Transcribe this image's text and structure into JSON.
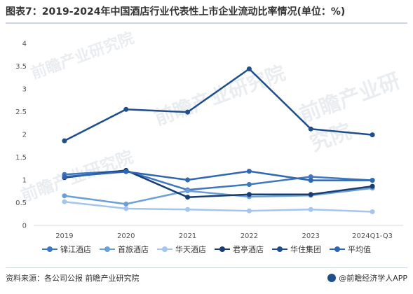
{
  "header": {
    "title": "图表7：2019-2024年中国酒店行业代表性上市企业流动比率情况(单位：%)"
  },
  "chart_data": {
    "type": "line",
    "x": [
      "2019",
      "2020",
      "2021",
      "2022",
      "2023",
      "2024Q1-Q3"
    ],
    "ylim": [
      0,
      4
    ],
    "yticks": [
      "0",
      "0.5",
      "1",
      "1.5",
      "2",
      "2.5",
      "3",
      "3.5",
      "4"
    ],
    "series": [
      {
        "name": "锦江酒店",
        "color": "#3e78c0",
        "values": [
          1.12,
          1.2,
          0.78,
          0.9,
          1.07,
          0.99
        ]
      },
      {
        "name": "首旅酒店",
        "color": "#6a9fd8",
        "values": [
          0.65,
          0.47,
          0.76,
          0.63,
          0.66,
          0.82
        ]
      },
      {
        "name": "华天酒店",
        "color": "#a4c5ee",
        "values": [
          0.52,
          0.37,
          0.35,
          0.32,
          0.35,
          0.3
        ]
      },
      {
        "name": "君亭酒店",
        "color": "#173d73",
        "values": [
          1.05,
          1.21,
          0.62,
          0.68,
          0.68,
          0.86
        ]
      },
      {
        "name": "华住集团",
        "color": "#1f4e8c",
        "values": [
          1.86,
          2.55,
          2.49,
          3.44,
          2.12,
          1.99
        ]
      },
      {
        "name": "平均值",
        "color": "#2f67b3",
        "values": [
          1.07,
          1.18,
          1.0,
          1.19,
          0.99,
          0.99
        ]
      }
    ]
  },
  "footer": {
    "source": "资料来源：各公司公报 前瞻产业研究院",
    "brand": "@前瞻经济学人APP"
  },
  "watermarks": [
    "前瞻产业研究院",
    "前瞻产业研究院",
    "前瞻产业研究院",
    "前瞻产业研究院"
  ]
}
